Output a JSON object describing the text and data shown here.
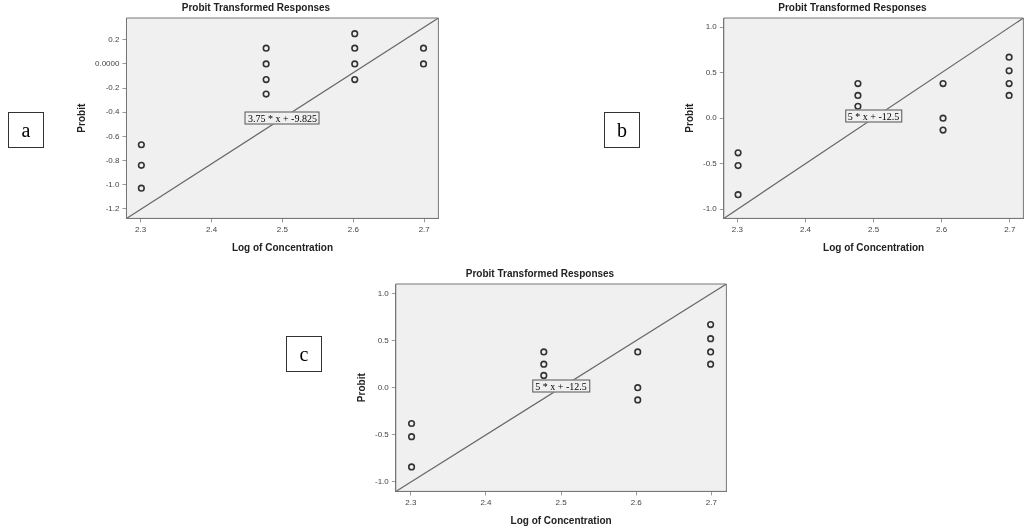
{
  "chart_data": [
    {
      "type": "scatter",
      "title": "Probit Transformed Responses",
      "xlabel": "Log of Concentration",
      "ylabel": "Probit",
      "xlim": [
        2.28,
        2.72
      ],
      "xticks": [
        2.3,
        2.4,
        2.5,
        2.6,
        2.7
      ],
      "ylim": [
        -1.28,
        0.38
      ],
      "yticks": [
        0.2,
        {
          "value": 0,
          "label": "0.0000"
        },
        -0.2,
        -0.4,
        -0.6,
        -0.8,
        {
          "value": -1,
          "label": "-1.0"
        },
        -1.2
      ],
      "grid": false,
      "legend": false,
      "annotations": [
        "a",
        "3.75 * x + -9.825"
      ],
      "series": [
        {
          "color": "#333333",
          "marker": "circle",
          "x": [
            2.301,
            2.301,
            2.301,
            2.477,
            2.477,
            2.477,
            2.477,
            2.602,
            2.602,
            2.602,
            2.602,
            2.699,
            2.699
          ],
          "values": [
            -0.67,
            -0.84,
            -1.03,
            0.13,
            0,
            -0.13,
            -0.25,
            0.25,
            0.13,
            0,
            -0.13,
            0.13,
            0
          ]
        },
        {
          "type": "line",
          "color": "#666666",
          "marker": "none",
          "x": [
            2.28,
            2.72
          ],
          "values": [
            -1.28,
            0.38
          ]
        }
      ]
    },
    {
      "type": "scatter",
      "title": "Probit Transformed Responses",
      "xlabel": "Log of Concentration",
      "ylabel": "Probit",
      "xlim": [
        2.28,
        2.72
      ],
      "xticks": [
        2.3,
        2.4,
        2.5,
        2.6,
        2.7
      ],
      "ylim": [
        -1.1,
        1.1
      ],
      "yticks": [
        {
          "value": 1,
          "label": "1.0"
        },
        0.5,
        {
          "value": 0,
          "label": "0.0"
        },
        -0.5,
        {
          "value": -1,
          "label": "-1.0"
        }
      ],
      "grid": false,
      "legend": false,
      "annotations": [
        "b",
        "5 * x + -12.5"
      ],
      "series": [
        {
          "color": "#333333",
          "marker": "circle",
          "x": [
            2.301,
            2.301,
            2.301,
            2.477,
            2.477,
            2.477,
            2.602,
            2.602,
            2.602,
            2.699,
            2.699,
            2.699,
            2.699
          ],
          "values": [
            -0.38,
            -0.52,
            -0.84,
            0.38,
            0.25,
            0.13,
            0.38,
            0,
            -0.13,
            0.67,
            0.52,
            0.38,
            0.25
          ]
        },
        {
          "type": "line",
          "color": "#666666",
          "marker": "none",
          "x": [
            2.28,
            2.72
          ],
          "values": [
            -1.1,
            1.1
          ]
        }
      ]
    },
    {
      "type": "scatter",
      "title": "Probit Transformed Responses",
      "xlabel": "Log of Concentration",
      "ylabel": "Probit",
      "xlim": [
        2.28,
        2.72
      ],
      "xticks": [
        2.3,
        2.4,
        2.5,
        2.6,
        2.7
      ],
      "ylim": [
        -1.1,
        1.1
      ],
      "yticks": [
        {
          "value": 1,
          "label": "1.0"
        },
        0.5,
        {
          "value": 0,
          "label": "0.0"
        },
        -0.5,
        {
          "value": -1,
          "label": "-1.0"
        }
      ],
      "grid": false,
      "legend": false,
      "annotations": [
        "c",
        "5 * x + -12.5"
      ],
      "series": [
        {
          "color": "#333333",
          "marker": "circle",
          "x": [
            2.301,
            2.301,
            2.301,
            2.477,
            2.477,
            2.477,
            2.602,
            2.602,
            2.602,
            2.699,
            2.699,
            2.699,
            2.699
          ],
          "values": [
            -0.38,
            -0.52,
            -0.84,
            0.38,
            0.25,
            0.13,
            0.38,
            0,
            -0.13,
            0.67,
            0.52,
            0.38,
            0.25
          ]
        },
        {
          "type": "line",
          "color": "#666666",
          "marker": "none",
          "x": [
            2.28,
            2.72
          ],
          "values": [
            -1.1,
            1.1
          ]
        }
      ]
    }
  ]
}
